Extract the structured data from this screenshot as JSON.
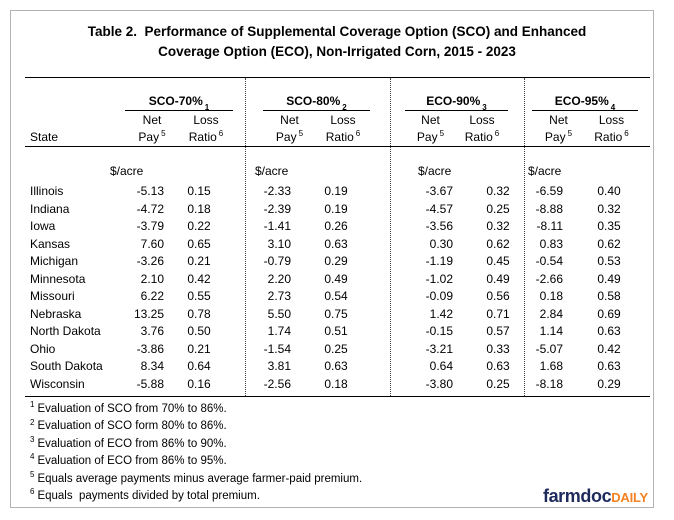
{
  "title": {
    "line1": "Table 2.  Performance of Supplemental Coverage Option (SCO) and Enhanced",
    "line2": "Coverage Option (ECO), Non-Irrigated Corn, 2015 - 2023"
  },
  "table": {
    "state_header": "State",
    "unit_label": "$/acre",
    "groups": [
      {
        "label": "SCO-70%",
        "sup": "1"
      },
      {
        "label": "SCO-80%",
        "sup": "2"
      },
      {
        "label": "ECO-90%",
        "sup": "3"
      },
      {
        "label": "ECO-95%",
        "sup": "4"
      }
    ],
    "subheader": {
      "net": "Net",
      "pay": "Pay",
      "pay_sup": "5",
      "loss": "Loss",
      "ratio": "Ratio",
      "ratio_sup": "6"
    },
    "rows": [
      {
        "state": "Illinois",
        "values": [
          "-5.13",
          "0.15",
          "-2.33",
          "0.19",
          "-3.67",
          "0.32",
          "-6.59",
          "0.40"
        ]
      },
      {
        "state": "Indiana",
        "values": [
          "-4.72",
          "0.18",
          "-2.39",
          "0.19",
          "-4.57",
          "0.25",
          "-8.88",
          "0.32"
        ]
      },
      {
        "state": "Iowa",
        "values": [
          "-3.79",
          "0.22",
          "-1.41",
          "0.26",
          "-3.56",
          "0.32",
          "-8.11",
          "0.35"
        ]
      },
      {
        "state": "Kansas",
        "values": [
          "7.60",
          "0.65",
          "3.10",
          "0.63",
          "0.30",
          "0.62",
          "0.83",
          "0.62"
        ]
      },
      {
        "state": "Michigan",
        "values": [
          "-3.26",
          "0.21",
          "-0.79",
          "0.29",
          "-1.19",
          "0.45",
          "-0.54",
          "0.53"
        ]
      },
      {
        "state": "Minnesota",
        "values": [
          "2.10",
          "0.42",
          "2.20",
          "0.49",
          "-1.02",
          "0.49",
          "-2.66",
          "0.49"
        ]
      },
      {
        "state": "Missouri",
        "values": [
          "6.22",
          "0.55",
          "2.73",
          "0.54",
          "-0.09",
          "0.56",
          "0.18",
          "0.58"
        ]
      },
      {
        "state": "Nebraska",
        "values": [
          "13.25",
          "0.78",
          "5.50",
          "0.75",
          "1.42",
          "0.71",
          "2.84",
          "0.69"
        ]
      },
      {
        "state": "North Dakota",
        "values": [
          "3.76",
          "0.50",
          "1.74",
          "0.51",
          "-0.15",
          "0.57",
          "1.14",
          "0.63"
        ]
      },
      {
        "state": "Ohio",
        "values": [
          "-3.86",
          "0.21",
          "-1.54",
          "0.25",
          "-3.21",
          "0.33",
          "-5.07",
          "0.42"
        ]
      },
      {
        "state": "South Dakota",
        "values": [
          "8.34",
          "0.64",
          "3.81",
          "0.63",
          "0.64",
          "0.63",
          "1.68",
          "0.63"
        ]
      },
      {
        "state": "Wisconsin",
        "values": [
          "-5.88",
          "0.16",
          "-2.56",
          "0.18",
          "-3.80",
          "0.25",
          "-8.18",
          "0.29"
        ]
      }
    ]
  },
  "footnotes": [
    {
      "sup": "1",
      "text": "Evaluation of SCO from 70% to 86%."
    },
    {
      "sup": "2",
      "text": "Evaluation of SCO form 80% to 86%."
    },
    {
      "sup": "3",
      "text": "Evaluation of ECO from 86% to 90%."
    },
    {
      "sup": "4",
      "text": "Evaluation of ECO from 86% to 95%."
    },
    {
      "sup": "5",
      "text": "Equals average payments minus average farmer-paid premium."
    },
    {
      "sup": "6",
      "text": "Equals  payments divided by total premium."
    }
  ],
  "logo": {
    "farmdoc": "farmdoc",
    "daily": "DAILY"
  },
  "colors": {
    "logo_navy": "#1f2a5c",
    "logo_orange": "#f58220",
    "frame_gray": "#b3b3b3",
    "rule_black": "#000000"
  }
}
